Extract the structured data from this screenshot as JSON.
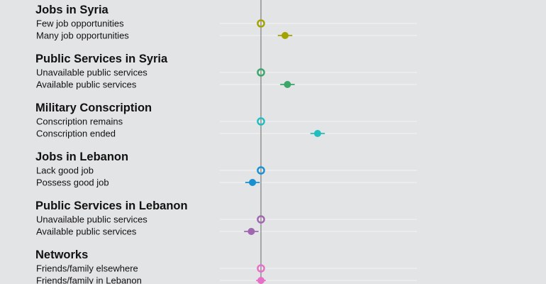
{
  "chart_data": {
    "type": "scatter",
    "title": "",
    "xlabel": "",
    "ylabel": "",
    "reference_x": 0,
    "xlim": [
      -0.15,
      0.15
    ],
    "marker_styles": {
      "baseline": "hollow-circle",
      "estimate": "filled-circle-with-ci"
    },
    "groups": [
      {
        "title": "Jobs in Syria",
        "color": "#a3a300",
        "levels": [
          {
            "label": "Few job opportunities",
            "estimate": 0,
            "ci": null,
            "baseline": true
          },
          {
            "label": "Many job opportunities",
            "estimate": 0.02,
            "ci": [
              0.014,
              0.026
            ],
            "baseline": false
          }
        ]
      },
      {
        "title": "Public Services in Syria",
        "color": "#3aa66a",
        "levels": [
          {
            "label": "Unavailable public services",
            "estimate": 0,
            "ci": null,
            "baseline": true
          },
          {
            "label": "Available public services",
            "estimate": 0.022,
            "ci": [
              0.016,
              0.028
            ],
            "baseline": false
          }
        ]
      },
      {
        "title": "Military Conscription",
        "color": "#1fbfc0",
        "levels": [
          {
            "label": "Conscription remains",
            "estimate": 0,
            "ci": null,
            "baseline": true
          },
          {
            "label": "Conscription ended",
            "estimate": 0.047,
            "ci": [
              0.041,
              0.053
            ],
            "baseline": false
          }
        ]
      },
      {
        "title": "Jobs in Lebanon",
        "color": "#1a8fd0",
        "levels": [
          {
            "label": "Lack good job",
            "estimate": 0,
            "ci": null,
            "baseline": true
          },
          {
            "label": "Possess good job",
            "estimate": -0.007,
            "ci": [
              -0.013,
              -0.001
            ],
            "baseline": false
          }
        ]
      },
      {
        "title": "Public Services in Lebanon",
        "color": "#a066b0",
        "levels": [
          {
            "label": "Unavailable public services",
            "estimate": 0,
            "ci": null,
            "baseline": true
          },
          {
            "label": "Available public services",
            "estimate": -0.008,
            "ci": [
              -0.014,
              -0.002
            ],
            "baseline": false
          }
        ]
      },
      {
        "title": "Networks",
        "color": "#e86fc8",
        "levels": [
          {
            "label": "Friends/family elsewhere",
            "estimate": 0,
            "ci": null,
            "baseline": true
          },
          {
            "label": "Friends/family in Lebanon",
            "estimate": 0,
            "ci": [
              -0.004,
              0.004
            ],
            "baseline": false
          }
        ]
      }
    ]
  }
}
